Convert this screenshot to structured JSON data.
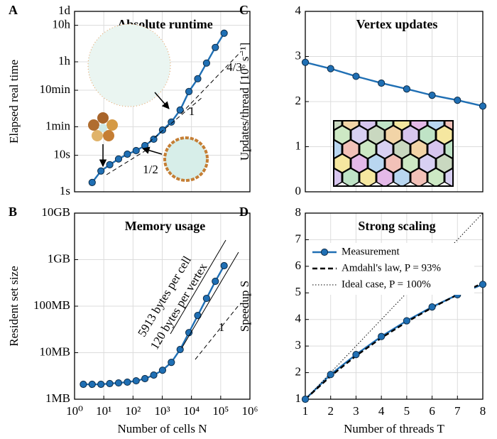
{
  "chart_data": [
    {
      "panel": "A",
      "type": "line",
      "title": "Absolute runtime",
      "ylabel": "Elapsed real time",
      "x": [
        4,
        8,
        16,
        32,
        64,
        128,
        256,
        512,
        1024,
        2048,
        4096,
        8192,
        16384,
        32768,
        65536,
        131072
      ],
      "values": [
        1.8,
        3.7,
        5.5,
        7.9,
        10.7,
        13.4,
        18.4,
        27.5,
        49,
        81,
        173,
        553,
        1240,
        3320,
        8900,
        21800
      ],
      "color": "#1f6fb4",
      "marker": "o",
      "xscale": "log",
      "yscale": "log",
      "xlim": [
        1,
        1000000
      ],
      "ylim": [
        1,
        86400
      ],
      "yticks": [
        {
          "value": 1,
          "label": "1s"
        },
        {
          "value": 10,
          "label": "10s"
        },
        {
          "value": 60,
          "label": "1min"
        },
        {
          "value": 600,
          "label": "10min"
        },
        {
          "value": 3600,
          "label": "1h"
        },
        {
          "value": 36000,
          "label": "10h"
        },
        {
          "value": 86400,
          "label": "1d"
        }
      ],
      "grid": true,
      "annotations": [
        "4/3",
        "1",
        "1/2"
      ]
    },
    {
      "panel": "B",
      "type": "line",
      "title": "Memory usage",
      "xlabel": "Number of cells N",
      "ylabel": "Resident set size",
      "x": [
        2,
        4,
        8,
        16,
        32,
        64,
        128,
        256,
        512,
        1024,
        2048,
        4096,
        8192,
        16384,
        32768,
        65536,
        131072
      ],
      "values": [
        2.09,
        2.09,
        2.09,
        2.17,
        2.24,
        2.33,
        2.49,
        2.77,
        3.3,
        4.2,
        6.2,
        11.7,
        27,
        63,
        147,
        342,
        742
      ],
      "color": "#1f6fb4",
      "marker": "o",
      "xscale": "log",
      "yscale": "log",
      "xlim": [
        1,
        1000000
      ],
      "ylim": [
        1,
        10000
      ],
      "xticks": [
        {
          "value": 1,
          "label": "10⁰"
        },
        {
          "value": 10,
          "label": "10¹"
        },
        {
          "value": 100,
          "label": "10²"
        },
        {
          "value": 1000,
          "label": "10³"
        },
        {
          "value": 10000,
          "label": "10⁴"
        },
        {
          "value": 100000,
          "label": "10⁵"
        },
        {
          "value": 1000000,
          "label": "10⁶"
        }
      ],
      "yticks": [
        {
          "value": 1,
          "label": "1MB"
        },
        {
          "value": 10,
          "label": "10MB"
        },
        {
          "value": 100,
          "label": "100MB"
        },
        {
          "value": 1000,
          "label": "1GB"
        },
        {
          "value": 10000,
          "label": "10GB"
        }
      ],
      "grid": true,
      "annotations": [
        "5913 bytes per cell",
        "120 bytes per vertex",
        "1"
      ]
    },
    {
      "panel": "C",
      "type": "line",
      "title": "Vertex updates",
      "ylabel": "Updates/thread [10⁶ s⁻¹]",
      "x": [
        1,
        2,
        3,
        4,
        5,
        6,
        7,
        8
      ],
      "values": [
        2.87,
        2.73,
        2.56,
        2.41,
        2.28,
        2.14,
        2.03,
        1.9
      ],
      "color": "#1f6fb4",
      "marker": "o",
      "xlim": [
        1,
        8
      ],
      "ylim": [
        0,
        4
      ],
      "yticks": [
        0,
        1,
        2,
        3,
        4
      ],
      "grid": true
    },
    {
      "panel": "D",
      "type": "line",
      "title": "Strong scaling",
      "xlabel": "Number of threads T",
      "ylabel": "Speedup S",
      "x": [
        1,
        2,
        3,
        4,
        5,
        6,
        7,
        8
      ],
      "series": [
        {
          "name": "Measurement",
          "color": "#1f6fb4",
          "marker": "o",
          "dash": "solid",
          "values": [
            1,
            1.93,
            2.68,
            3.36,
            3.95,
            4.47,
            4.93,
            5.32
          ]
        },
        {
          "name": "Amdahl's law, P = 93%",
          "color": "#000000",
          "dash": "dashed",
          "values": [
            1,
            1.869,
            2.632,
            3.306,
            3.906,
            4.444,
            4.93,
            5.369
          ]
        },
        {
          "name": "Ideal case, P = 100%",
          "color": "#000000",
          "dash": "dotted",
          "values": [
            1,
            2,
            3,
            4,
            5,
            6,
            7,
            8
          ]
        }
      ],
      "xlim": [
        1,
        8
      ],
      "ylim": [
        1,
        8
      ],
      "xticks": [
        1,
        2,
        3,
        4,
        5,
        6,
        7,
        8
      ],
      "yticks": [
        1,
        2,
        3,
        4,
        5,
        6,
        7,
        8
      ],
      "grid": true,
      "legend": "upper left"
    }
  ]
}
